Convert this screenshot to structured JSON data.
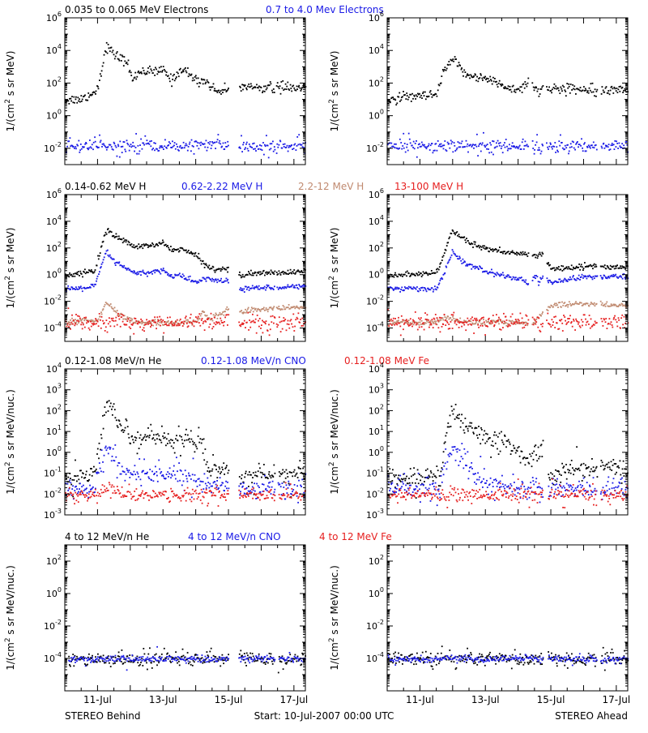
{
  "rows": [
    {
      "labels": [
        {
          "text": "0.035 to 0.065 MeV Electrons",
          "color": "#000000"
        },
        {
          "text": "0.7 to 4.0 Mev Electrons",
          "color": "#1a1ae6"
        }
      ],
      "ylabel_line1": "1/(cm",
      "ylabel_sup": "2",
      "ylabel_line2": " s sr MeV)"
    },
    {
      "labels": [
        {
          "text": "0.14-0.62 MeV H",
          "color": "#000000"
        },
        {
          "text": "0.62-2.22 MeV H",
          "color": "#1a1ae6"
        },
        {
          "text": "2.2-12 MeV H",
          "color": "#c08a70"
        },
        {
          "text": "13-100 MeV H",
          "color": "#e62020"
        }
      ],
      "ylabel_line1": "1/(cm",
      "ylabel_sup": "2",
      "ylabel_line2": " s sr MeV)"
    },
    {
      "labels": [
        {
          "text": "0.12-1.08 MeV/n He",
          "color": "#000000"
        },
        {
          "text": "0.12-1.08 MeV/n CNO",
          "color": "#1a1ae6"
        },
        {
          "text": "0.12-1.08 MeV Fe",
          "color": "#e62020"
        }
      ],
      "ylabel_line1": "1/(cm",
      "ylabel_sup": "2",
      "ylabel_line2": " s sr MeV/nuc.)"
    },
    {
      "labels": [
        {
          "text": "4 to 12 MeV/n He",
          "color": "#000000"
        },
        {
          "text": "4 to 12 MeV/n CNO",
          "color": "#1a1ae6"
        },
        {
          "text": "4 to 12 MeV Fe",
          "color": "#e62020"
        }
      ],
      "ylabel_line1": "1/(cm",
      "ylabel_sup": "2",
      "ylabel_line2": " s sr MeV/nuc.)"
    }
  ],
  "footer": {
    "left": "STEREO Behind",
    "center": "Start: 10-Jul-2007 00:00 UTC",
    "right": "STEREO Ahead"
  },
  "chart_data": [
    {
      "type": "scatter",
      "spacecraft": "STEREO Behind",
      "yscale": "log",
      "xlim": [
        10.0,
        17.35
      ],
      "ylim": [
        0.001,
        1000000
      ],
      "ytick_exponents": [
        -2,
        0,
        2,
        4,
        6
      ],
      "x_ticks": [
        "11-Jul",
        "13-Jul",
        "15-Jul",
        "17-Jul"
      ],
      "x_tick_values": [
        11,
        13,
        15,
        17
      ],
      "gaps": [
        [
          15.0,
          15.3
        ],
        [
          16.4,
          16.45
        ]
      ],
      "series": [
        {
          "name": "0.035 to 0.065 MeV Electrons",
          "color": "#000000",
          "noise": 0.15,
          "x": [
            10.0,
            10.5,
            10.9,
            11.0,
            11.25,
            11.5,
            11.9,
            12.05,
            12.25,
            12.5,
            12.75,
            13.0,
            13.25,
            13.5,
            13.75,
            14.0,
            14.3,
            14.55,
            15.0,
            15.3,
            15.6,
            16.0,
            16.5,
            17.35
          ],
          "y": [
            10,
            12,
            30,
            80,
            20000,
            6000,
            2000,
            150,
            600,
            600,
            500,
            700,
            150,
            700,
            500,
            150,
            150,
            40,
            40,
            60,
            60,
            60,
            60,
            50
          ]
        },
        {
          "name": "0.7 to 4.0 Mev Electrons",
          "color": "#1a1ae6",
          "noise": 0.18,
          "scatter_frac": 0.15,
          "x": [
            10.0,
            17.35
          ],
          "y": [
            0.015,
            0.015
          ]
        }
      ]
    },
    {
      "type": "scatter",
      "spacecraft": "STEREO Ahead",
      "yscale": "log",
      "xlim": [
        10.0,
        17.35
      ],
      "ylim": [
        0.001,
        1000000
      ],
      "ytick_exponents": [
        -2,
        0,
        2,
        4,
        6
      ],
      "x_ticks": [
        "11-Jul",
        "13-Jul",
        "15-Jul",
        "17-Jul"
      ],
      "x_tick_values": [
        11,
        13,
        15,
        17
      ],
      "gaps": [
        [
          14.3,
          14.4
        ],
        [
          14.75,
          14.85
        ],
        [
          16.4,
          16.5
        ]
      ],
      "series": [
        {
          "name": "0.035 to 0.065 MeV Electrons",
          "color": "#000000",
          "noise": 0.15,
          "x": [
            10.0,
            10.7,
            11.5,
            11.7,
            11.95,
            12.4,
            13.0,
            13.5,
            14.0,
            14.3,
            14.55,
            14.75,
            15.0,
            16.0,
            17.35
          ],
          "y": [
            10,
            15,
            20,
            500,
            3000,
            400,
            200,
            80,
            40,
            150,
            40,
            60,
            50,
            50,
            40
          ]
        },
        {
          "name": "0.7 to 4.0 Mev Electrons",
          "color": "#1a1ae6",
          "noise": 0.18,
          "scatter_frac": 0.15,
          "x": [
            10.0,
            17.35
          ],
          "y": [
            0.015,
            0.015
          ]
        }
      ]
    },
    {
      "type": "scatter",
      "spacecraft": "STEREO Behind",
      "yscale": "log",
      "xlim": [
        10.0,
        17.35
      ],
      "ylim": [
        1e-05,
        1000000
      ],
      "ytick_exponents": [
        -4,
        -2,
        0,
        2,
        4,
        6
      ],
      "x_ticks": [
        "11-Jul",
        "13-Jul",
        "15-Jul",
        "17-Jul"
      ],
      "x_tick_values": [
        11,
        13,
        15,
        17
      ],
      "gaps": [
        [
          15.0,
          15.3
        ],
        [
          16.4,
          16.45
        ]
      ],
      "series": [
        {
          "name": "0.14-0.62 MeV H",
          "color": "#000000",
          "noise": 0.1,
          "x": [
            10.0,
            10.9,
            11.0,
            11.25,
            11.5,
            11.9,
            12.05,
            12.5,
            13.0,
            13.25,
            13.5,
            14.0,
            14.3,
            14.6,
            15.0,
            15.3,
            16.0,
            17.35
          ],
          "y": [
            1,
            2,
            20,
            3000,
            800,
            300,
            150,
            150,
            250,
            80,
            100,
            30,
            5,
            3,
            3,
            1,
            1.5,
            2
          ]
        },
        {
          "name": "0.62-2.22 MeV H",
          "color": "#1a1ae6",
          "noise": 0.1,
          "x": [
            10.0,
            10.9,
            11.0,
            11.25,
            11.5,
            11.9,
            12.05,
            12.5,
            13.0,
            13.25,
            13.5,
            14.0,
            14.3,
            14.6,
            15.0,
            15.3,
            16.0,
            17.35
          ],
          "y": [
            0.08,
            0.15,
            1,
            60,
            10,
            3,
            1.5,
            1.5,
            2.5,
            0.8,
            1,
            0.3,
            0.6,
            0.4,
            0.4,
            0.1,
            0.12,
            0.15
          ]
        },
        {
          "name": "2.2-12 MeV H",
          "color": "#c08a70",
          "noise": 0.1,
          "x": [
            10.0,
            11.0,
            11.25,
            11.5,
            11.9,
            12.1,
            13.0,
            13.5,
            14.0,
            14.2,
            14.4,
            15.0,
            15.3,
            16.0,
            17.35
          ],
          "y": [
            0.0003,
            0.0004,
            0.01,
            0.002,
            0.0005,
            0.0003,
            0.0003,
            0.0003,
            0.0003,
            0.002,
            0.0005,
            0.003,
            0.002,
            0.003,
            0.004
          ]
        },
        {
          "name": "13-100 MeV H",
          "color": "#e62020",
          "noise": 0.25,
          "scatter_frac": 0.35,
          "x": [
            10.0,
            17.35
          ],
          "y": [
            0.0003,
            0.0003
          ]
        }
      ]
    },
    {
      "type": "scatter",
      "spacecraft": "STEREO Ahead",
      "yscale": "log",
      "xlim": [
        10.0,
        17.35
      ],
      "ylim": [
        1e-05,
        1000000
      ],
      "ytick_exponents": [
        -4,
        -2,
        0,
        2,
        4,
        6
      ],
      "x_ticks": [
        "11-Jul",
        "13-Jul",
        "15-Jul",
        "17-Jul"
      ],
      "x_tick_values": [
        11,
        13,
        15,
        17
      ],
      "gaps": [
        [
          14.3,
          14.4
        ],
        [
          14.75,
          14.85
        ],
        [
          16.4,
          16.5
        ]
      ],
      "series": [
        {
          "name": "0.14-0.62 MeV H",
          "color": "#000000",
          "noise": 0.1,
          "x": [
            10.0,
            11.5,
            11.7,
            11.95,
            12.5,
            13.0,
            13.5,
            14.0,
            14.3,
            14.6,
            14.75,
            14.85,
            15.0,
            16.0,
            17.35
          ],
          "y": [
            1,
            1.5,
            30,
            2000,
            300,
            100,
            50,
            40,
            50,
            20,
            60,
            10,
            3,
            5,
            4
          ]
        },
        {
          "name": "0.62-2.22 MeV H",
          "color": "#1a1ae6",
          "noise": 0.1,
          "x": [
            10.0,
            11.5,
            11.7,
            11.95,
            12.5,
            13.0,
            13.5,
            14.0,
            14.3,
            14.55,
            14.6,
            14.75,
            14.85,
            15.0,
            16.0,
            17.35
          ],
          "y": [
            0.1,
            0.1,
            1,
            50,
            5,
            2,
            1,
            0.5,
            0.3,
            1,
            0.2,
            1,
            0.5,
            0.3,
            0.8,
            0.8
          ]
        },
        {
          "name": "2.2-12 MeV H",
          "color": "#c08a70",
          "noise": 0.1,
          "x": [
            10.0,
            11.5,
            11.8,
            12.0,
            12.5,
            13.0,
            13.5,
            14.0,
            14.3,
            14.5,
            14.75,
            15.0,
            15.3,
            16.0,
            17.35
          ],
          "y": [
            0.0003,
            0.0003,
            0.0008,
            0.0005,
            0.0003,
            0.0003,
            0.0003,
            0.0003,
            0.0003,
            0.0003,
            0.002,
            0.005,
            0.007,
            0.007,
            0.005
          ]
        },
        {
          "name": "13-100 MeV H",
          "color": "#e62020",
          "noise": 0.25,
          "scatter_frac": 0.35,
          "x": [
            10.0,
            17.35
          ],
          "y": [
            0.0003,
            0.0003
          ]
        }
      ]
    },
    {
      "type": "scatter",
      "spacecraft": "STEREO Behind",
      "yscale": "log",
      "xlim": [
        10.0,
        17.35
      ],
      "ylim": [
        0.001,
        10000
      ],
      "ytick_exponents": [
        -3,
        -2,
        -1,
        0,
        1,
        2,
        3,
        4
      ],
      "x_ticks": [
        "11-Jul",
        "13-Jul",
        "15-Jul",
        "17-Jul"
      ],
      "x_tick_values": [
        11,
        13,
        15,
        17
      ],
      "gaps": [
        [
          15.0,
          15.3
        ],
        [
          16.4,
          16.5
        ]
      ],
      "series": [
        {
          "name": "0.12-1.08 MeV/n He",
          "color": "#000000",
          "noise": 0.2,
          "scatter_frac": 0.2,
          "x": [
            10.0,
            10.9,
            11.0,
            11.25,
            11.5,
            11.9,
            12.05,
            12.5,
            13.0,
            13.25,
            13.5,
            14.0,
            14.2,
            14.3,
            14.5,
            15.0,
            15.3,
            16.0,
            17.35
          ],
          "y": [
            0.05,
            0.1,
            1,
            200,
            50,
            10,
            6,
            6,
            7,
            3,
            5,
            3,
            2,
            0.1,
            0.2,
            0.2,
            0.05,
            0.08,
            0.1
          ]
        },
        {
          "name": "0.12-1.08 MeV/n CNO",
          "color": "#1a1ae6",
          "noise": 0.2,
          "scatter_frac": 0.2,
          "x": [
            10.0,
            10.9,
            11.0,
            11.25,
            11.5,
            11.9,
            12.05,
            12.5,
            13.0,
            13.25,
            13.5,
            14.0,
            14.3,
            15.0,
            15.3,
            16.0,
            17.35
          ],
          "y": [
            0.02,
            0.02,
            0.1,
            2,
            0.5,
            0.1,
            0.1,
            0.1,
            0.1,
            0.1,
            0.1,
            0.05,
            0.03,
            0.03,
            0.02,
            0.02,
            0.02
          ]
        },
        {
          "name": "0.12-1.08 MeV Fe",
          "color": "#e62020",
          "noise": 0.15,
          "scatter_frac": 0.15,
          "x": [
            10.0,
            11.0,
            11.3,
            11.5,
            11.8,
            12.05,
            17.35
          ],
          "y": [
            0.01,
            0.01,
            0.03,
            0.02,
            0.01,
            0.01,
            0.01
          ]
        }
      ]
    },
    {
      "type": "scatter",
      "spacecraft": "STEREO Ahead",
      "yscale": "log",
      "xlim": [
        10.0,
        17.35
      ],
      "ylim": [
        0.001,
        10000
      ],
      "ytick_exponents": [
        -3,
        -2,
        -1,
        0,
        1,
        2,
        3,
        4
      ],
      "x_ticks": [
        "11-Jul",
        "13-Jul",
        "15-Jul",
        "17-Jul"
      ],
      "x_tick_values": [
        11,
        13,
        15,
        17
      ],
      "gaps": [
        [
          14.75,
          14.9
        ],
        [
          16.4,
          16.5
        ]
      ],
      "series": [
        {
          "name": "0.12-1.08 MeV/n He",
          "color": "#000000",
          "noise": 0.2,
          "scatter_frac": 0.2,
          "x": [
            10.0,
            11.6,
            11.7,
            11.95,
            12.5,
            13.0,
            13.5,
            14.0,
            14.3,
            14.6,
            14.75,
            14.9,
            15.3,
            16.0,
            17.35
          ],
          "y": [
            0.05,
            0.08,
            2,
            100,
            15,
            5,
            3,
            1,
            0.5,
            1,
            1.5,
            0.1,
            0.1,
            0.2,
            0.2
          ]
        },
        {
          "name": "0.12-1.08 MeV/n CNO",
          "color": "#1a1ae6",
          "noise": 0.2,
          "scatter_frac": 0.2,
          "x": [
            10.0,
            11.6,
            11.7,
            11.95,
            12.5,
            13.0,
            13.5,
            14.0,
            17.35
          ],
          "y": [
            0.02,
            0.02,
            0.2,
            2,
            0.2,
            0.05,
            0.03,
            0.02,
            0.02
          ]
        },
        {
          "name": "0.12-1.08 MeV Fe",
          "color": "#e62020",
          "noise": 0.15,
          "scatter_frac": 0.15,
          "x": [
            10.0,
            17.35
          ],
          "y": [
            0.01,
            0.01
          ]
        }
      ]
    },
    {
      "type": "scatter",
      "spacecraft": "STEREO Behind",
      "yscale": "log",
      "xlim": [
        10.0,
        17.35
      ],
      "ylim": [
        1e-06,
        1000
      ],
      "ytick_exponents": [
        -4,
        -2,
        0,
        2
      ],
      "x_ticks": [
        "11-Jul",
        "13-Jul",
        "15-Jul",
        "17-Jul"
      ],
      "x_tick_values": [
        11,
        13,
        15,
        17
      ],
      "gaps": [
        [
          10.0,
          10.1
        ],
        [
          15.0,
          15.3
        ],
        [
          16.4,
          16.5
        ]
      ],
      "series": [
        {
          "name": "4 to 12 MeV/n He",
          "color": "#000000",
          "noise": 0.2,
          "scatter_frac": 0.08,
          "x": [
            10.0,
            17.35
          ],
          "y": [
            0.0001,
            0.0001
          ]
        },
        {
          "name": "4 to 12 MeV/n CNO",
          "color": "#1a1ae6",
          "noise": 0.0,
          "scatter_frac": 0.02,
          "x": [
            10.0,
            17.35
          ],
          "y": [
            0.0001,
            0.0001
          ]
        }
      ]
    },
    {
      "type": "scatter",
      "spacecraft": "STEREO Ahead",
      "yscale": "log",
      "xlim": [
        10.0,
        17.35
      ],
      "ylim": [
        1e-06,
        1000
      ],
      "ytick_exponents": [
        -4,
        -2,
        0,
        2
      ],
      "x_ticks": [
        "11-Jul",
        "13-Jul",
        "15-Jul",
        "17-Jul"
      ],
      "x_tick_values": [
        11,
        13,
        15,
        17
      ],
      "gaps": [
        [
          14.75,
          14.9
        ],
        [
          16.4,
          16.5
        ]
      ],
      "series": [
        {
          "name": "4 to 12 MeV/n He",
          "color": "#000000",
          "noise": 0.2,
          "scatter_frac": 0.1,
          "x": [
            10.0,
            17.35
          ],
          "y": [
            0.0001,
            0.0001
          ]
        },
        {
          "name": "4 to 12 MeV/n CNO",
          "color": "#1a1ae6",
          "noise": 0.0,
          "scatter_frac": 0.02,
          "x": [
            10.0,
            17.35
          ],
          "y": [
            0.0001,
            0.0001
          ]
        }
      ]
    }
  ]
}
